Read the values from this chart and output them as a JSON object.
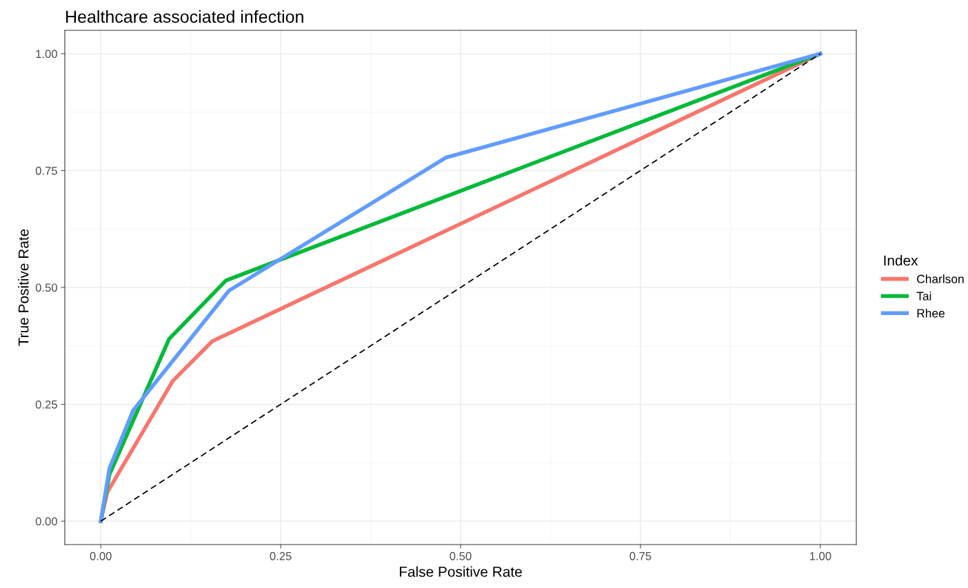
{
  "chart_data": {
    "type": "line",
    "title": "Healthcare associated infection",
    "xlabel": "False Positive Rate",
    "ylabel": "True Positive Rate",
    "legend_title": "Index",
    "legend": "right",
    "grid": true,
    "xlim": [
      -0.05,
      1.05
    ],
    "ylim": [
      -0.05,
      1.05
    ],
    "xticks": [
      {
        "value": 0,
        "label": "0.00"
      },
      {
        "value": 0.25,
        "label": "0.25"
      },
      {
        "value": 0.5,
        "label": "0.50"
      },
      {
        "value": 0.75,
        "label": "0.75"
      },
      {
        "value": 1,
        "label": "1.00"
      }
    ],
    "yticks": [
      {
        "value": 0,
        "label": "0.00"
      },
      {
        "value": 0.25,
        "label": "0.25"
      },
      {
        "value": 0.5,
        "label": "0.50"
      },
      {
        "value": 0.75,
        "label": "0.75"
      },
      {
        "value": 1,
        "label": "1.00"
      }
    ],
    "series": [
      {
        "name": "Charlson",
        "color": "#f8766d",
        "x": [
          0,
          0.009,
          0.1,
          0.155,
          1
        ],
        "values": [
          0,
          0.062,
          0.3,
          0.385,
          1
        ]
      },
      {
        "name": "Tai",
        "color": "#00ba38",
        "x": [
          0,
          0.012,
          0.095,
          0.174,
          1
        ],
        "values": [
          0,
          0.1,
          0.39,
          0.515,
          1
        ]
      },
      {
        "name": "Rhee",
        "color": "#619cff",
        "x": [
          0,
          0.012,
          0.045,
          0.178,
          0.48,
          1
        ],
        "values": [
          0,
          0.113,
          0.237,
          0.493,
          0.778,
          1
        ]
      },
      {
        "color": "#000000",
        "line_style": "dashed",
        "x": [
          0,
          1
        ],
        "values": [
          0,
          1
        ]
      }
    ]
  }
}
